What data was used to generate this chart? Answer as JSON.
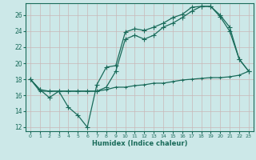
{
  "xlabel": "Humidex (Indice chaleur)",
  "background_color": "#cce8e8",
  "grid_color": "#aacccc",
  "line_color": "#1a6b5a",
  "xlim": [
    -0.5,
    23.5
  ],
  "ylim": [
    11.5,
    27.5
  ],
  "xticks": [
    0,
    1,
    2,
    3,
    4,
    5,
    6,
    7,
    8,
    9,
    10,
    11,
    12,
    13,
    14,
    15,
    16,
    17,
    18,
    19,
    20,
    21,
    22,
    23
  ],
  "yticks": [
    12,
    14,
    16,
    18,
    20,
    22,
    24,
    26
  ],
  "line1_x": [
    0,
    1,
    2,
    3,
    4,
    5,
    6,
    7,
    8,
    9,
    10,
    11,
    12,
    13,
    14,
    15,
    16,
    17,
    18,
    19,
    20,
    21,
    22,
    23
  ],
  "line1_y": [
    18.0,
    16.7,
    15.7,
    16.5,
    14.5,
    13.5,
    12.0,
    17.3,
    19.5,
    19.7,
    23.9,
    24.3,
    24.1,
    24.5,
    25.0,
    25.7,
    26.1,
    27.0,
    27.1,
    27.1,
    26.0,
    24.5,
    20.5,
    19.0
  ],
  "line2_x": [
    0,
    1,
    2,
    3,
    4,
    5,
    6,
    7,
    8,
    9,
    10,
    11,
    12,
    13,
    14,
    15,
    16,
    17,
    18,
    19,
    20,
    21,
    22,
    23
  ],
  "line2_y": [
    18.0,
    16.7,
    16.5,
    16.5,
    16.5,
    16.5,
    16.5,
    16.5,
    17.0,
    19.0,
    23.0,
    23.5,
    23.0,
    23.5,
    24.5,
    25.0,
    25.7,
    26.5,
    27.1,
    27.1,
    25.8,
    24.0,
    20.5,
    19.0
  ],
  "line3_x": [
    0,
    1,
    2,
    3,
    4,
    5,
    6,
    7,
    8,
    9,
    10,
    11,
    12,
    13,
    14,
    15,
    16,
    17,
    18,
    19,
    20,
    21,
    22,
    23
  ],
  "line3_y": [
    18.0,
    16.5,
    16.5,
    16.5,
    16.5,
    16.5,
    16.5,
    16.5,
    16.7,
    17.0,
    17.0,
    17.2,
    17.3,
    17.5,
    17.5,
    17.7,
    17.9,
    18.0,
    18.1,
    18.2,
    18.2,
    18.3,
    18.5,
    19.0
  ]
}
